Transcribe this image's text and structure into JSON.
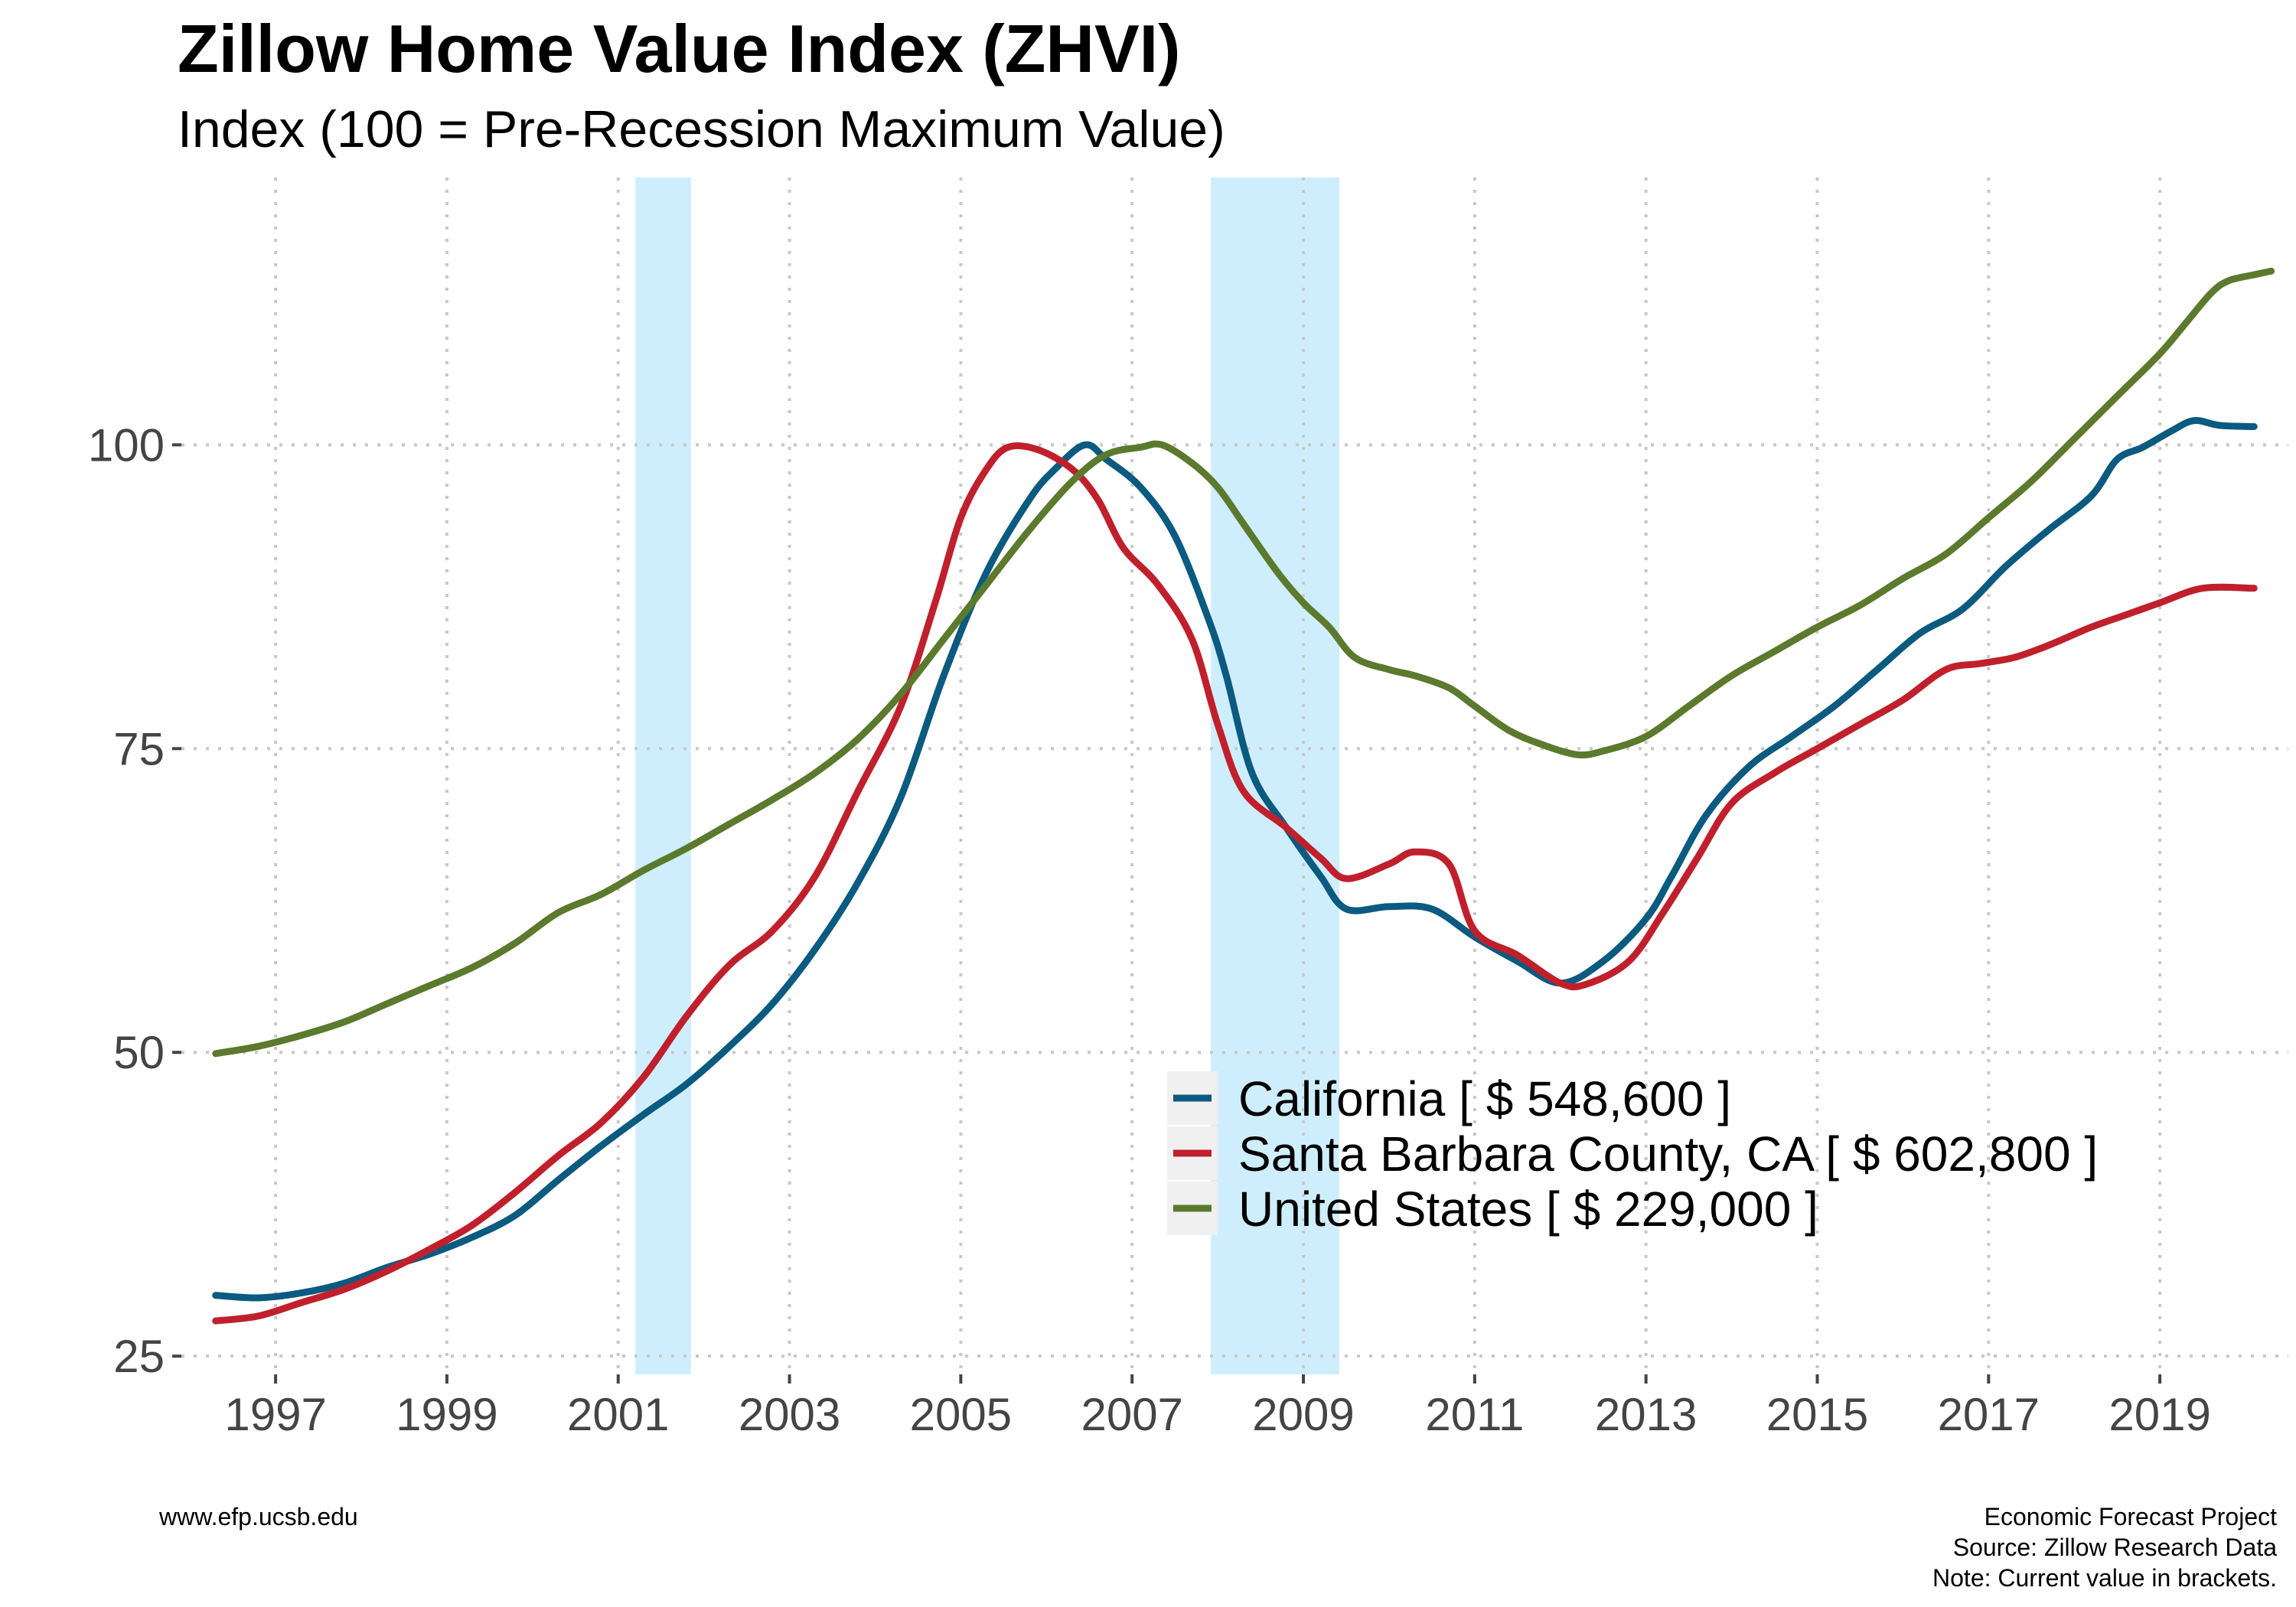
{
  "chart_data": {
    "type": "line",
    "title": "Zillow Home Value Index (ZHVI)",
    "subtitle": "Index (100 = Pre-Recession Maximum Value)",
    "xlabel": "",
    "ylabel": "",
    "xlim": [
      1995.9,
      2020.5
    ],
    "ylim": [
      23.5,
      122
    ],
    "x_ticks": [
      1997,
      1999,
      2001,
      2003,
      2005,
      2007,
      2009,
      2011,
      2013,
      2015,
      2017,
      2019
    ],
    "x_tick_labels": [
      "1997",
      "1999",
      "2001",
      "2003",
      "2005",
      "2007",
      "2009",
      "2011",
      "2013",
      "2015",
      "2017",
      "2019"
    ],
    "y_ticks": [
      25,
      50,
      75,
      100
    ],
    "y_tick_labels": [
      "25",
      "50",
      "75",
      "100"
    ],
    "grid": true,
    "legend_position": "bottom-right",
    "recession_shading": [
      {
        "start": 2001.2,
        "end": 2001.85
      },
      {
        "start": 2007.92,
        "end": 2009.42
      }
    ],
    "series": [
      {
        "name": "California [ $ 548,600 ]",
        "color": "#0b5a80",
        "points": [
          [
            1996.3,
            30.0
          ],
          [
            1996.8,
            29.8
          ],
          [
            1997.3,
            30.2
          ],
          [
            1997.8,
            31.0
          ],
          [
            1998.3,
            32.3
          ],
          [
            1998.8,
            33.4
          ],
          [
            1999.3,
            34.8
          ],
          [
            1999.8,
            36.6
          ],
          [
            2000.3,
            39.5
          ],
          [
            2000.8,
            42.3
          ],
          [
            2001.3,
            44.9
          ],
          [
            2001.8,
            47.4
          ],
          [
            2002.3,
            50.5
          ],
          [
            2002.8,
            54.0
          ],
          [
            2003.3,
            58.5
          ],
          [
            2003.8,
            64.0
          ],
          [
            2004.3,
            71.0
          ],
          [
            2004.8,
            81.0
          ],
          [
            2005.3,
            89.5
          ],
          [
            2005.8,
            95.5
          ],
          [
            2006.1,
            98.0
          ],
          [
            2006.45,
            100.0
          ],
          [
            2006.7,
            98.8
          ],
          [
            2007.1,
            96.5
          ],
          [
            2007.5,
            92.5
          ],
          [
            2007.9,
            85.5
          ],
          [
            2008.1,
            81.0
          ],
          [
            2008.4,
            73.0
          ],
          [
            2008.8,
            68.5
          ],
          [
            2009.2,
            64.5
          ],
          [
            2009.5,
            61.8
          ],
          [
            2010.0,
            62.0
          ],
          [
            2010.5,
            61.8
          ],
          [
            2011.0,
            59.5
          ],
          [
            2011.5,
            57.5
          ],
          [
            2012.0,
            55.7
          ],
          [
            2012.5,
            57.5
          ],
          [
            2013.0,
            61.0
          ],
          [
            2013.3,
            64.5
          ],
          [
            2013.7,
            69.5
          ],
          [
            2014.2,
            73.5
          ],
          [
            2014.7,
            76.0
          ],
          [
            2015.2,
            78.5
          ],
          [
            2015.7,
            81.5
          ],
          [
            2016.2,
            84.5
          ],
          [
            2016.7,
            86.5
          ],
          [
            2017.2,
            90.0
          ],
          [
            2017.7,
            93.0
          ],
          [
            2018.2,
            95.8
          ],
          [
            2018.5,
            98.8
          ],
          [
            2018.8,
            99.8
          ],
          [
            2019.15,
            101.2
          ],
          [
            2019.4,
            102.0
          ],
          [
            2019.7,
            101.6
          ],
          [
            2020.1,
            101.5
          ]
        ]
      },
      {
        "name": "Santa Barbara County, CA [ $ 602,800 ]",
        "color": "#c0202c",
        "points": [
          [
            1996.3,
            27.9
          ],
          [
            1996.8,
            28.3
          ],
          [
            1997.3,
            29.4
          ],
          [
            1997.8,
            30.5
          ],
          [
            1998.3,
            32.0
          ],
          [
            1998.8,
            33.8
          ],
          [
            1999.3,
            35.8
          ],
          [
            1999.8,
            38.5
          ],
          [
            2000.3,
            41.5
          ],
          [
            2000.8,
            44.2
          ],
          [
            2001.3,
            48.0
          ],
          [
            2001.8,
            53.0
          ],
          [
            2002.3,
            57.2
          ],
          [
            2002.8,
            60.0
          ],
          [
            2003.3,
            64.5
          ],
          [
            2003.8,
            71.5
          ],
          [
            2004.3,
            78.5
          ],
          [
            2004.7,
            87.0
          ],
          [
            2005.0,
            94.0
          ],
          [
            2005.3,
            98.0
          ],
          [
            2005.55,
            99.8
          ],
          [
            2005.9,
            99.6
          ],
          [
            2006.3,
            98.0
          ],
          [
            2006.6,
            95.5
          ],
          [
            2006.9,
            91.5
          ],
          [
            2007.3,
            88.5
          ],
          [
            2007.7,
            84.0
          ],
          [
            2008.0,
            77.0
          ],
          [
            2008.3,
            71.5
          ],
          [
            2008.8,
            68.5
          ],
          [
            2009.2,
            66.0
          ],
          [
            2009.5,
            64.3
          ],
          [
            2010.0,
            65.5
          ],
          [
            2010.3,
            66.5
          ],
          [
            2010.7,
            65.5
          ],
          [
            2011.0,
            60.0
          ],
          [
            2011.5,
            58.0
          ],
          [
            2012.0,
            55.7
          ],
          [
            2012.3,
            55.6
          ],
          [
            2012.8,
            57.5
          ],
          [
            2013.2,
            61.5
          ],
          [
            2013.6,
            66.0
          ],
          [
            2014.0,
            70.5
          ],
          [
            2014.5,
            73.0
          ],
          [
            2015.0,
            75.0
          ],
          [
            2015.5,
            77.0
          ],
          [
            2016.0,
            79.0
          ],
          [
            2016.5,
            81.5
          ],
          [
            2016.9,
            82.0
          ],
          [
            2017.3,
            82.5
          ],
          [
            2017.7,
            83.5
          ],
          [
            2018.2,
            85.0
          ],
          [
            2018.6,
            86.0
          ],
          [
            2019.0,
            87.0
          ],
          [
            2019.5,
            88.2
          ],
          [
            2020.1,
            88.2
          ]
        ]
      },
      {
        "name": "United States [ $ 229,000 ]",
        "color": "#5b7a2d",
        "points": [
          [
            1996.3,
            49.9
          ],
          [
            1996.8,
            50.5
          ],
          [
            1997.3,
            51.4
          ],
          [
            1997.8,
            52.5
          ],
          [
            1998.3,
            54.0
          ],
          [
            1998.8,
            55.5
          ],
          [
            1999.3,
            57.0
          ],
          [
            1999.8,
            59.0
          ],
          [
            2000.3,
            61.5
          ],
          [
            2000.8,
            63.0
          ],
          [
            2001.3,
            65.0
          ],
          [
            2001.8,
            66.8
          ],
          [
            2002.3,
            68.8
          ],
          [
            2002.8,
            70.8
          ],
          [
            2003.3,
            73.0
          ],
          [
            2003.8,
            75.8
          ],
          [
            2004.3,
            79.5
          ],
          [
            2004.8,
            84.0
          ],
          [
            2005.3,
            88.5
          ],
          [
            2005.8,
            93.0
          ],
          [
            2006.3,
            97.0
          ],
          [
            2006.7,
            99.2
          ],
          [
            2007.1,
            99.8
          ],
          [
            2007.35,
            100.0
          ],
          [
            2007.7,
            98.5
          ],
          [
            2008.0,
            96.5
          ],
          [
            2008.3,
            93.5
          ],
          [
            2008.7,
            89.5
          ],
          [
            2009.0,
            87.0
          ],
          [
            2009.3,
            85.0
          ],
          [
            2009.6,
            82.5
          ],
          [
            2010.0,
            81.5
          ],
          [
            2010.3,
            81.0
          ],
          [
            2010.7,
            80.0
          ],
          [
            2011.0,
            78.5
          ],
          [
            2011.4,
            76.5
          ],
          [
            2011.8,
            75.3
          ],
          [
            2012.2,
            74.5
          ],
          [
            2012.5,
            74.8
          ],
          [
            2013.0,
            76.0
          ],
          [
            2013.5,
            78.5
          ],
          [
            2014.0,
            81.0
          ],
          [
            2014.5,
            83.0
          ],
          [
            2015.0,
            85.0
          ],
          [
            2015.5,
            86.8
          ],
          [
            2016.0,
            89.0
          ],
          [
            2016.5,
            91.0
          ],
          [
            2017.0,
            94.0
          ],
          [
            2017.5,
            97.0
          ],
          [
            2018.0,
            100.5
          ],
          [
            2018.5,
            104.0
          ],
          [
            2019.0,
            107.5
          ],
          [
            2019.3,
            110.0
          ],
          [
            2019.6,
            112.5
          ],
          [
            2019.8,
            113.5
          ],
          [
            2020.1,
            114.0
          ],
          [
            2020.3,
            114.3
          ]
        ]
      }
    ],
    "footer_left": "www.efp.ucsb.edu",
    "footer_right": [
      "Economic Forecast Project",
      "Source: Zillow Research Data",
      "Note: Current value in brackets."
    ]
  }
}
